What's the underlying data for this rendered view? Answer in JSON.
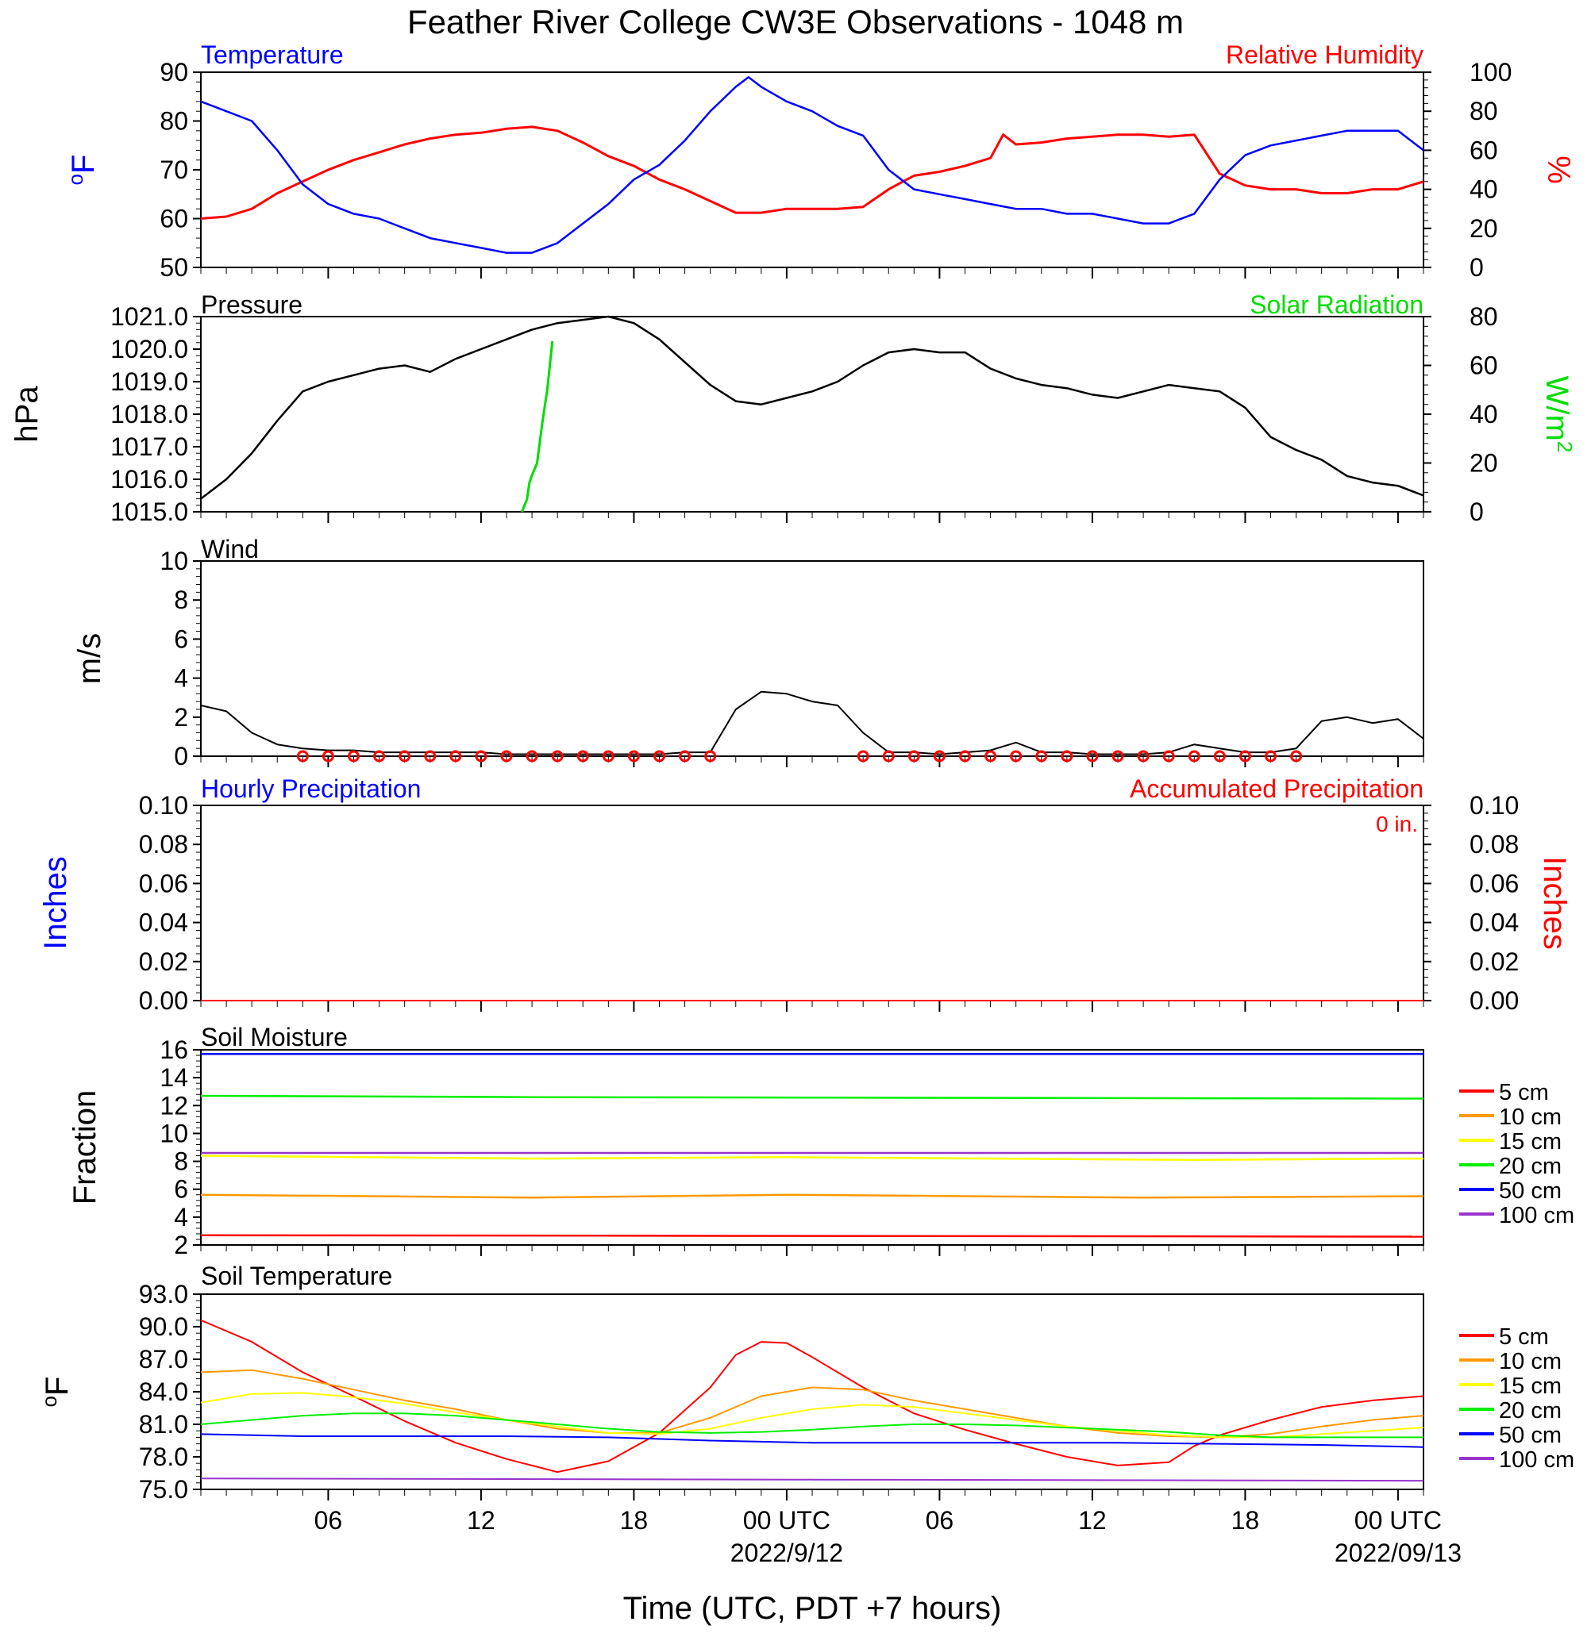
{
  "title": "Feather River College CW3E Observations - 1048 m",
  "xlabel": "Time (UTC, PDT +7 hours)",
  "xticks": [
    {
      "h": 6,
      "label": "06"
    },
    {
      "h": 12,
      "label": "12"
    },
    {
      "h": 18,
      "label": "18"
    },
    {
      "h": 24,
      "label": "00 UTC"
    },
    {
      "h": 30,
      "label": "06"
    },
    {
      "h": 36,
      "label": "12"
    },
    {
      "h": 42,
      "label": "18"
    },
    {
      "h": 48,
      "label": "00 UTC"
    }
  ],
  "dates": [
    {
      "h": 24,
      "label": "2022/9/12"
    },
    {
      "h": 48,
      "label": "2022/09/13"
    }
  ],
  "time_range_hours": [
    1,
    49
  ],
  "panel_titles": {
    "temperature": "Temperature",
    "humidity": "Relative Humidity",
    "pressure": "Pressure",
    "solar": "Solar Radiation",
    "wind": "Wind",
    "hourly_precip": "Hourly Precipitation",
    "accum_precip": "Accumulated Precipitation",
    "accum_total": "0 in.",
    "soil_moisture": "Soil Moisture",
    "soil_temp": "Soil Temperature"
  },
  "axis_labels": {
    "temp_left": "F",
    "temp_left_sup": "o",
    "rh_right": "%",
    "pressure_left": "hPa",
    "solar_right": "W/m",
    "solar_right_sup": "2",
    "wind_left": "m/s",
    "precip_left": "Inches",
    "precip_right": "Inches",
    "sm_left": "Fraction",
    "st_left": "F",
    "st_left_sup": "o"
  },
  "colors": {
    "temperature": "#0000ff",
    "humidity": "#ff0000",
    "pressure": "#000000",
    "solar": "#00dd00",
    "wind": "#000000",
    "wind_barb": "#ff0000"
  },
  "legend_depths": [
    {
      "label": "5 cm",
      "color": "#ff0000"
    },
    {
      "label": "10 cm",
      "color": "#ff9900"
    },
    {
      "label": "15 cm",
      "color": "#ffff00"
    },
    {
      "label": "20 cm",
      "color": "#00ee00"
    },
    {
      "label": "50 cm",
      "color": "#0000ff"
    },
    {
      "label": "100 cm",
      "color": "#9933cc"
    }
  ],
  "chart_data": [
    {
      "type": "line",
      "name": "Temperature / Relative Humidity",
      "y_left": {
        "label": "oF",
        "ylim": [
          50,
          90
        ],
        "ticks": [
          50,
          60,
          70,
          80,
          90
        ]
      },
      "y_right": {
        "label": "%",
        "ylim": [
          0,
          100
        ],
        "ticks": [
          0,
          20,
          40,
          60,
          80,
          100
        ]
      },
      "series": [
        {
          "name": "Temperature",
          "axis": "left",
          "x": [
            1,
            2,
            3,
            4,
            5,
            6,
            7,
            8,
            9,
            10,
            11,
            12,
            13,
            14,
            15,
            16,
            17,
            18,
            19,
            20,
            21,
            22,
            22.5,
            23,
            24,
            25,
            26,
            27,
            28,
            29,
            30,
            31,
            32,
            33,
            34,
            35,
            36,
            37,
            38,
            39,
            40,
            41,
            42,
            43,
            44,
            45,
            46,
            47,
            48,
            49
          ],
          "y": [
            84,
            82,
            80,
            74,
            67,
            63,
            61,
            60,
            58,
            56,
            55,
            54,
            53,
            53,
            55,
            59,
            63,
            68,
            71,
            76,
            82,
            87,
            89,
            87,
            84,
            82,
            79,
            77,
            70,
            66,
            65,
            64,
            63,
            62,
            62,
            61,
            61,
            60,
            59,
            59,
            61,
            68,
            73,
            75,
            76,
            77,
            78,
            78,
            78,
            74
          ]
        },
        {
          "name": "Relative Humidity",
          "axis": "right",
          "x": [
            1,
            2,
            3,
            4,
            5,
            6,
            7,
            8,
            9,
            10,
            11,
            12,
            13,
            14,
            15,
            16,
            17,
            18,
            19,
            20,
            21,
            22,
            23,
            24,
            25,
            26,
            27,
            28,
            29,
            30,
            31,
            32,
            32.5,
            33,
            34,
            35,
            36,
            37,
            38,
            39,
            40,
            41,
            42,
            43,
            44,
            45,
            46,
            47,
            48,
            49
          ],
          "y": [
            25,
            26,
            30,
            38,
            44,
            50,
            55,
            59,
            63,
            66,
            68,
            69,
            71,
            72,
            70,
            64,
            57,
            52,
            45,
            40,
            34,
            28,
            28,
            30,
            30,
            30,
            31,
            40,
            47,
            49,
            52,
            56,
            68,
            63,
            64,
            66,
            67,
            68,
            68,
            67,
            68,
            48,
            42,
            40,
            40,
            38,
            38,
            40,
            40,
            44
          ]
        }
      ]
    },
    {
      "type": "line",
      "name": "Pressure / Solar Radiation",
      "y_left": {
        "label": "hPa",
        "ylim": [
          1015.0,
          1021.0
        ],
        "ticks": [
          "1015.0",
          "1016.0",
          "1017.0",
          "1018.0",
          "1019.0",
          "1020.0",
          "1021.0"
        ]
      },
      "y_right": {
        "label": "W/m2",
        "ylim": [
          0,
          80
        ],
        "ticks": [
          0,
          20,
          40,
          60,
          80
        ]
      },
      "series": [
        {
          "name": "Pressure",
          "axis": "left",
          "x": [
            1,
            2,
            3,
            4,
            5,
            6,
            7,
            8,
            9,
            10,
            11,
            12,
            13,
            14,
            15,
            16,
            17,
            18,
            19,
            20,
            21,
            22,
            23,
            24,
            25,
            26,
            27,
            28,
            29,
            30,
            31,
            32,
            33,
            34,
            35,
            36,
            37,
            38,
            39,
            40,
            41,
            42,
            43,
            44,
            45,
            46,
            47,
            48,
            49
          ],
          "y": [
            1015.4,
            1016.0,
            1016.8,
            1017.8,
            1018.7,
            1019.0,
            1019.2,
            1019.4,
            1019.5,
            1019.3,
            1019.7,
            1020.0,
            1020.3,
            1020.6,
            1020.8,
            1020.9,
            1021.0,
            1020.8,
            1020.3,
            1019.6,
            1018.9,
            1018.4,
            1018.3,
            1018.5,
            1018.7,
            1019.0,
            1019.5,
            1019.9,
            1020.0,
            1019.9,
            1019.9,
            1019.4,
            1019.1,
            1018.9,
            1018.8,
            1018.6,
            1018.5,
            1018.7,
            1018.9,
            1018.8,
            1018.7,
            1018.2,
            1017.3,
            1016.9,
            1016.6,
            1016.1,
            1015.9,
            1015.8,
            1015.5
          ]
        },
        {
          "name": "Solar Radiation",
          "axis": "right",
          "x": [
            13.6,
            13.8,
            13.9,
            14.0,
            14.2,
            14.4,
            14.6,
            14.8
          ],
          "y": [
            0,
            5,
            12,
            15,
            20,
            36,
            50,
            70
          ]
        }
      ]
    },
    {
      "type": "line",
      "name": "Wind",
      "y_left": {
        "label": "m/s",
        "ylim": [
          0,
          10
        ],
        "ticks": [
          0,
          2,
          4,
          6,
          8,
          10
        ]
      },
      "series": [
        {
          "name": "Wind",
          "x": [
            1,
            2,
            3,
            4,
            5,
            6,
            7,
            8,
            9,
            10,
            11,
            12,
            13,
            14,
            15,
            16,
            17,
            18,
            19,
            20,
            21,
            22,
            23,
            24,
            25,
            26,
            27,
            28,
            29,
            30,
            31,
            32,
            33,
            34,
            35,
            36,
            37,
            38,
            39,
            40,
            41,
            42,
            43,
            44,
            45,
            46,
            47,
            48,
            49
          ],
          "y": [
            2.6,
            2.3,
            1.2,
            0.6,
            0.4,
            0.3,
            0.3,
            0.2,
            0.2,
            0.2,
            0.2,
            0.2,
            0.1,
            0.1,
            0.1,
            0.1,
            0.1,
            0.1,
            0.1,
            0.2,
            0.2,
            2.4,
            3.3,
            3.2,
            2.8,
            2.6,
            1.2,
            0.2,
            0.2,
            0.1,
            0.2,
            0.3,
            0.7,
            0.2,
            0.2,
            0.1,
            0.1,
            0.1,
            0.2,
            0.6,
            0.4,
            0.2,
            0.2,
            0.4,
            1.8,
            2.0,
            1.7,
            1.9,
            0.9
          ]
        }
      ],
      "barb_circles_hours": [
        5,
        6,
        7,
        8,
        9,
        10,
        11,
        12,
        13,
        14,
        15,
        16,
        17,
        18,
        19,
        20,
        21,
        27,
        28,
        29,
        30,
        31,
        32,
        33,
        34,
        35,
        36,
        37,
        38,
        39,
        40,
        41,
        42,
        43,
        44
      ]
    },
    {
      "type": "line",
      "name": "Hourly Precipitation / Accumulated Precipitation",
      "y_left": {
        "label": "Inches",
        "ylim": [
          0,
          0.1
        ],
        "ticks": [
          "0.00",
          "0.02",
          "0.04",
          "0.06",
          "0.08",
          "0.10"
        ]
      },
      "y_right": {
        "label": "Inches",
        "ylim": [
          0,
          0.1
        ],
        "ticks": [
          "0.00",
          "0.02",
          "0.04",
          "0.06",
          "0.08",
          "0.10"
        ]
      },
      "series": [
        {
          "name": "Hourly Precipitation",
          "x": [
            1,
            49
          ],
          "y": [
            0,
            0
          ]
        },
        {
          "name": "Accumulated Precipitation",
          "x": [
            1,
            49
          ],
          "y": [
            0,
            0
          ]
        }
      ]
    },
    {
      "type": "line",
      "name": "Soil Moisture",
      "y_left": {
        "label": "Fraction",
        "ylim": [
          2,
          16
        ],
        "ticks": [
          2,
          4,
          6,
          8,
          10,
          12,
          14,
          16
        ]
      },
      "series": [
        {
          "name": "5 cm",
          "x": [
            1,
            49
          ],
          "y": [
            2.7,
            2.6
          ]
        },
        {
          "name": "10 cm",
          "x": [
            1,
            14,
            24,
            38,
            49
          ],
          "y": [
            5.6,
            5.4,
            5.6,
            5.4,
            5.5
          ]
        },
        {
          "name": "15 cm",
          "x": [
            1,
            14,
            24,
            40,
            49
          ],
          "y": [
            8.4,
            8.2,
            8.3,
            8.1,
            8.2
          ]
        },
        {
          "name": "20 cm",
          "x": [
            1,
            14,
            49
          ],
          "y": [
            12.7,
            12.6,
            12.5
          ]
        },
        {
          "name": "50 cm",
          "x": [
            1,
            49
          ],
          "y": [
            15.7,
            15.7
          ]
        },
        {
          "name": "100 cm",
          "x": [
            1,
            49
          ],
          "y": [
            8.6,
            8.6
          ]
        }
      ]
    },
    {
      "type": "line",
      "name": "Soil Temperature",
      "y_left": {
        "label": "oF",
        "ylim": [
          75.0,
          93.0
        ],
        "ticks": [
          "75.0",
          "78.0",
          "81.0",
          "84.0",
          "87.0",
          "90.0",
          "93.0"
        ]
      },
      "series": [
        {
          "name": "5 cm",
          "x": [
            1,
            3,
            5,
            7,
            9,
            11,
            13,
            15,
            17,
            19,
            21,
            22,
            23,
            24,
            25,
            27,
            29,
            31,
            33,
            35,
            37,
            39,
            40,
            41,
            43,
            45,
            47,
            49
          ],
          "y": [
            90.6,
            88.6,
            85.8,
            83.6,
            81.3,
            79.3,
            77.8,
            76.6,
            77.6,
            80.2,
            84.4,
            87.4,
            88.6,
            88.5,
            87.2,
            84.4,
            82.0,
            80.5,
            79.2,
            78.0,
            77.2,
            77.5,
            79.0,
            80.0,
            81.4,
            82.6,
            83.2,
            83.6
          ]
        },
        {
          "name": "10 cm",
          "x": [
            1,
            3,
            5,
            7,
            9,
            11,
            13,
            15,
            17,
            19,
            21,
            23,
            25,
            27,
            29,
            31,
            33,
            35,
            37,
            39,
            41,
            43,
            45,
            47,
            49
          ],
          "y": [
            85.8,
            86.0,
            85.2,
            84.2,
            83.2,
            82.4,
            81.4,
            80.6,
            80.2,
            80.2,
            81.6,
            83.6,
            84.4,
            84.2,
            83.2,
            82.4,
            81.6,
            80.8,
            80.2,
            79.9,
            79.8,
            80.1,
            80.8,
            81.4,
            81.8
          ]
        },
        {
          "name": "15 cm",
          "x": [
            1,
            3,
            5,
            7,
            9,
            11,
            13,
            15,
            17,
            19,
            21,
            23,
            25,
            27,
            29,
            31,
            33,
            35,
            37,
            39,
            41,
            43,
            45,
            47,
            49
          ],
          "y": [
            83.0,
            83.8,
            83.9,
            83.5,
            82.9,
            82.1,
            81.4,
            80.8,
            80.2,
            80.1,
            80.6,
            81.6,
            82.4,
            82.8,
            82.6,
            82.0,
            81.4,
            80.8,
            80.4,
            80.0,
            79.8,
            79.8,
            80.1,
            80.4,
            80.7
          ]
        },
        {
          "name": "20 cm",
          "x": [
            1,
            3,
            5,
            7,
            9,
            11,
            13,
            15,
            17,
            19,
            21,
            23,
            25,
            27,
            29,
            31,
            33,
            35,
            37,
            39,
            41,
            43,
            45,
            47,
            49
          ],
          "y": [
            81.0,
            81.4,
            81.8,
            82.0,
            82.0,
            81.8,
            81.4,
            81.0,
            80.6,
            80.3,
            80.2,
            80.3,
            80.5,
            80.8,
            81.0,
            81.0,
            80.9,
            80.7,
            80.5,
            80.3,
            80.0,
            79.8,
            79.8,
            79.8,
            79.8
          ]
        },
        {
          "name": "50 cm",
          "x": [
            1,
            5,
            13,
            17,
            21,
            25,
            29,
            33,
            37,
            41,
            45,
            49
          ],
          "y": [
            80.1,
            79.9,
            79.9,
            79.8,
            79.5,
            79.3,
            79.3,
            79.3,
            79.3,
            79.2,
            79.1,
            78.9
          ]
        },
        {
          "name": "100 cm",
          "x": [
            1,
            25,
            49
          ],
          "y": [
            76.0,
            75.9,
            75.8
          ]
        }
      ]
    }
  ]
}
